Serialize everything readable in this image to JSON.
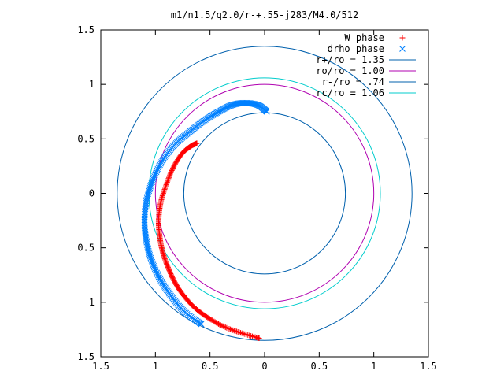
{
  "chart_data": {
    "type": "scatter",
    "title": "m1/n1.5/q2.0/r-+.55-j283/M4.0/512",
    "xlabel": "",
    "ylabel": "",
    "xlim": [
      -1.5,
      1.5
    ],
    "ylim": [
      -1.5,
      1.5
    ],
    "x_ticks": [
      -1.5,
      -1,
      -0.5,
      0,
      0.5,
      1,
      1.5
    ],
    "y_ticks": [
      -1.5,
      -1,
      -0.5,
      0,
      0.5,
      1,
      1.5
    ],
    "x_tick_labels": [
      "1.5",
      "1",
      "0.5",
      "0",
      "0.5",
      "1",
      "1.5"
    ],
    "y_tick_labels": [
      "1.5",
      "1",
      "0.5",
      "0",
      "0.5",
      "1",
      "1.5"
    ],
    "grid": false,
    "legend_position": "top-right",
    "series": [
      {
        "name": "W phase",
        "marker": "plus",
        "color": "#ff0000",
        "start": [
          -0.62,
          0.46
        ],
        "end": [
          -0.05,
          -1.33
        ],
        "x": [
          -0.62,
          -0.68,
          -0.76,
          -0.84,
          -0.9,
          -0.95,
          -0.97,
          -0.96,
          -0.93,
          -0.88,
          -0.82,
          -0.74,
          -0.64,
          -0.52,
          -0.38,
          -0.22,
          -0.05
        ],
        "y": [
          0.46,
          0.43,
          0.36,
          0.23,
          0.08,
          -0.08,
          -0.24,
          -0.4,
          -0.55,
          -0.69,
          -0.82,
          -0.94,
          -1.05,
          -1.14,
          -1.22,
          -1.28,
          -1.33
        ]
      },
      {
        "name": "drho phase",
        "marker": "cross",
        "color": "#0080ff",
        "start": [
          0.02,
          0.75
        ],
        "end": [
          -0.58,
          -1.2
        ],
        "x": [
          0.02,
          -0.06,
          -0.18,
          -0.3,
          -0.42,
          -0.55,
          -0.68,
          -0.81,
          -0.93,
          -1.02,
          -1.08,
          -1.1,
          -1.08,
          -1.03,
          -0.95,
          -0.85,
          -0.73,
          -0.58
        ],
        "y": [
          0.75,
          0.81,
          0.83,
          0.81,
          0.75,
          0.67,
          0.57,
          0.46,
          0.31,
          0.13,
          -0.06,
          -0.26,
          -0.45,
          -0.63,
          -0.8,
          -0.95,
          -1.09,
          -1.2
        ]
      }
    ],
    "circles": [
      {
        "label": "r+/ro = 1.35",
        "radius": 1.35,
        "color": "#0060ad"
      },
      {
        "label": "ro/ro = 1.00",
        "radius": 1.0,
        "color": "#b000b0"
      },
      {
        "label": "r-/ro = .74",
        "radius": 0.74,
        "color": "#0060ad"
      },
      {
        "label": "rc/ro = 1.06",
        "radius": 1.06,
        "color": "#00cccc"
      }
    ]
  }
}
